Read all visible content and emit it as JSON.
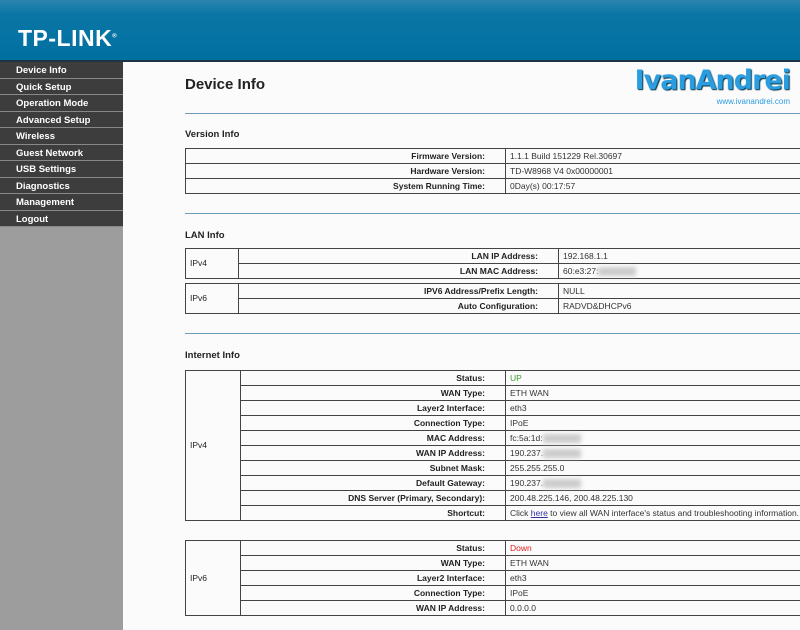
{
  "header": {
    "logo": "TP-LINK"
  },
  "sidebar": {
    "items": [
      "Device Info",
      "Quick Setup",
      "Operation Mode",
      "Advanced Setup",
      "Wireless",
      "Guest Network",
      "USB Settings",
      "Diagnostics",
      "Management",
      "Logout"
    ]
  },
  "page": {
    "title": "Device Info",
    "watermark": "IvanAndrei",
    "watermark_url": "www.ivanandrei.com"
  },
  "version": {
    "title": "Version Info",
    "rows": [
      [
        "Firmware Version:",
        "1.1.1 Build 151229 Rel.30697"
      ],
      [
        "Hardware Version:",
        "TD-W8968 V4 0x00000001"
      ],
      [
        "System Running Time:",
        "0Day(s) 00:17:57"
      ]
    ]
  },
  "lan": {
    "title": "LAN Info",
    "ipv4_label": "IPv4",
    "ipv4": [
      [
        "LAN IP Address:",
        "192.168.1.1"
      ],
      [
        "LAN MAC Address:",
        "60:e3:27:"
      ]
    ],
    "ipv6_label": "IPv6",
    "ipv6": [
      [
        "IPV6 Address/Prefix Length:",
        "NULL"
      ],
      [
        "Auto Configuration:",
        "RADVD&DHCPv6"
      ]
    ]
  },
  "internet": {
    "title": "Internet Info",
    "ipv4_label": "IPv4",
    "ipv4": [
      [
        "Status:",
        "UP"
      ],
      [
        "WAN Type:",
        "ETH WAN"
      ],
      [
        "Layer2 Interface:",
        "eth3"
      ],
      [
        "Connection Type:",
        "IPoE"
      ],
      [
        "MAC Address:",
        "fc:5a:1d:"
      ],
      [
        "WAN IP Address:",
        "190.237."
      ],
      [
        "Subnet Mask:",
        "255.255.255.0"
      ],
      [
        "Default Gateway:",
        "190.237."
      ],
      [
        "DNS Server (Primary, Secondary):",
        "200.48.225.146, 200.48.225.130"
      ]
    ],
    "shortcut": {
      "label": "Shortcut:",
      "pre": "Click ",
      "link": "here",
      "post": " to view all WAN interface's status and troubleshooting information."
    },
    "ipv6_label": "IPv6",
    "ipv6": [
      [
        "Status:",
        "Down"
      ],
      [
        "WAN Type:",
        "ETH WAN"
      ],
      [
        "Layer2 Interface:",
        "eth3"
      ],
      [
        "Connection Type:",
        "IPoE"
      ],
      [
        "WAN IP Address:",
        "0.0.0.0"
      ]
    ]
  },
  "colors": {
    "header": "#0070a0",
    "status_up": "#3a9a2a",
    "status_down": "#e02020"
  }
}
